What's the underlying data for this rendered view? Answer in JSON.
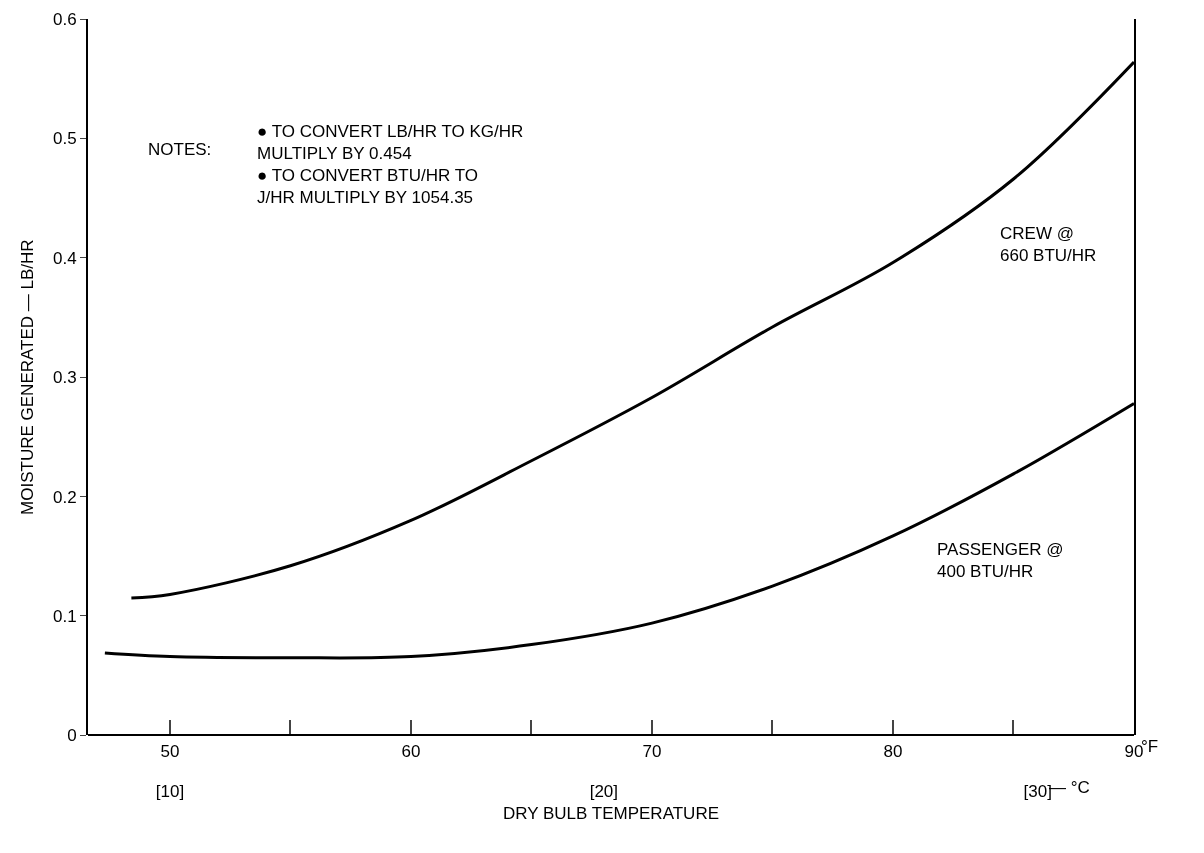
{
  "chart_data": {
    "type": "line",
    "xlabel": "DRY BULB TEMPERATURE",
    "ylabel": "MOISTURE GENERATED — LB/HR",
    "x2label": "— °C",
    "xlim": [
      46.6,
      90
    ],
    "xticks": [
      50,
      {
        "value": 55,
        "label": null
      },
      60,
      {
        "value": 65,
        "label": null
      },
      70,
      {
        "value": 75,
        "label": null
      },
      80,
      {
        "value": 85,
        "label": null
      },
      90
    ],
    "x2lim": [
      8.11,
      32.22
    ],
    "x2ticks": [
      {
        "value": 10,
        "label": "[10]"
      },
      {
        "value": 20,
        "label": "[20]"
      },
      {
        "value": 30,
        "label": "[30]"
      }
    ],
    "ylim": [
      0,
      0.6
    ],
    "yticks": [
      0,
      0.1,
      0.2,
      0.3,
      0.4,
      0.5,
      0.6
    ],
    "legend": false,
    "marker": "none",
    "line_style": "solid",
    "series": [
      {
        "name": "CREW @\n660 BTU/HR",
        "color": "#000000",
        "x": [
          48.4,
          50,
          55,
          60,
          65,
          70,
          75,
          80,
          85,
          90
        ],
        "values": [
          0.115,
          0.118,
          0.142,
          0.18,
          0.23,
          0.283,
          0.342,
          0.396,
          0.466,
          0.564
        ]
      },
      {
        "name": "PASSENGER @\n400 BTU/HR",
        "color": "#000000",
        "x": [
          47.3,
          50,
          55,
          60,
          65,
          70,
          75,
          80,
          85,
          90
        ],
        "values": [
          0.069,
          0.066,
          0.065,
          0.066,
          0.076,
          0.094,
          0.125,
          0.167,
          0.219,
          0.278
        ]
      }
    ],
    "annotations": [
      "NOTES:",
      "● TO CONVERT LB/HR TO KG/HR\nMULTIPLY BY 0.454\n● TO CONVERT BTU/HR TO\nJ/HR MULTIPLY BY 1054.35",
      "°F"
    ]
  }
}
